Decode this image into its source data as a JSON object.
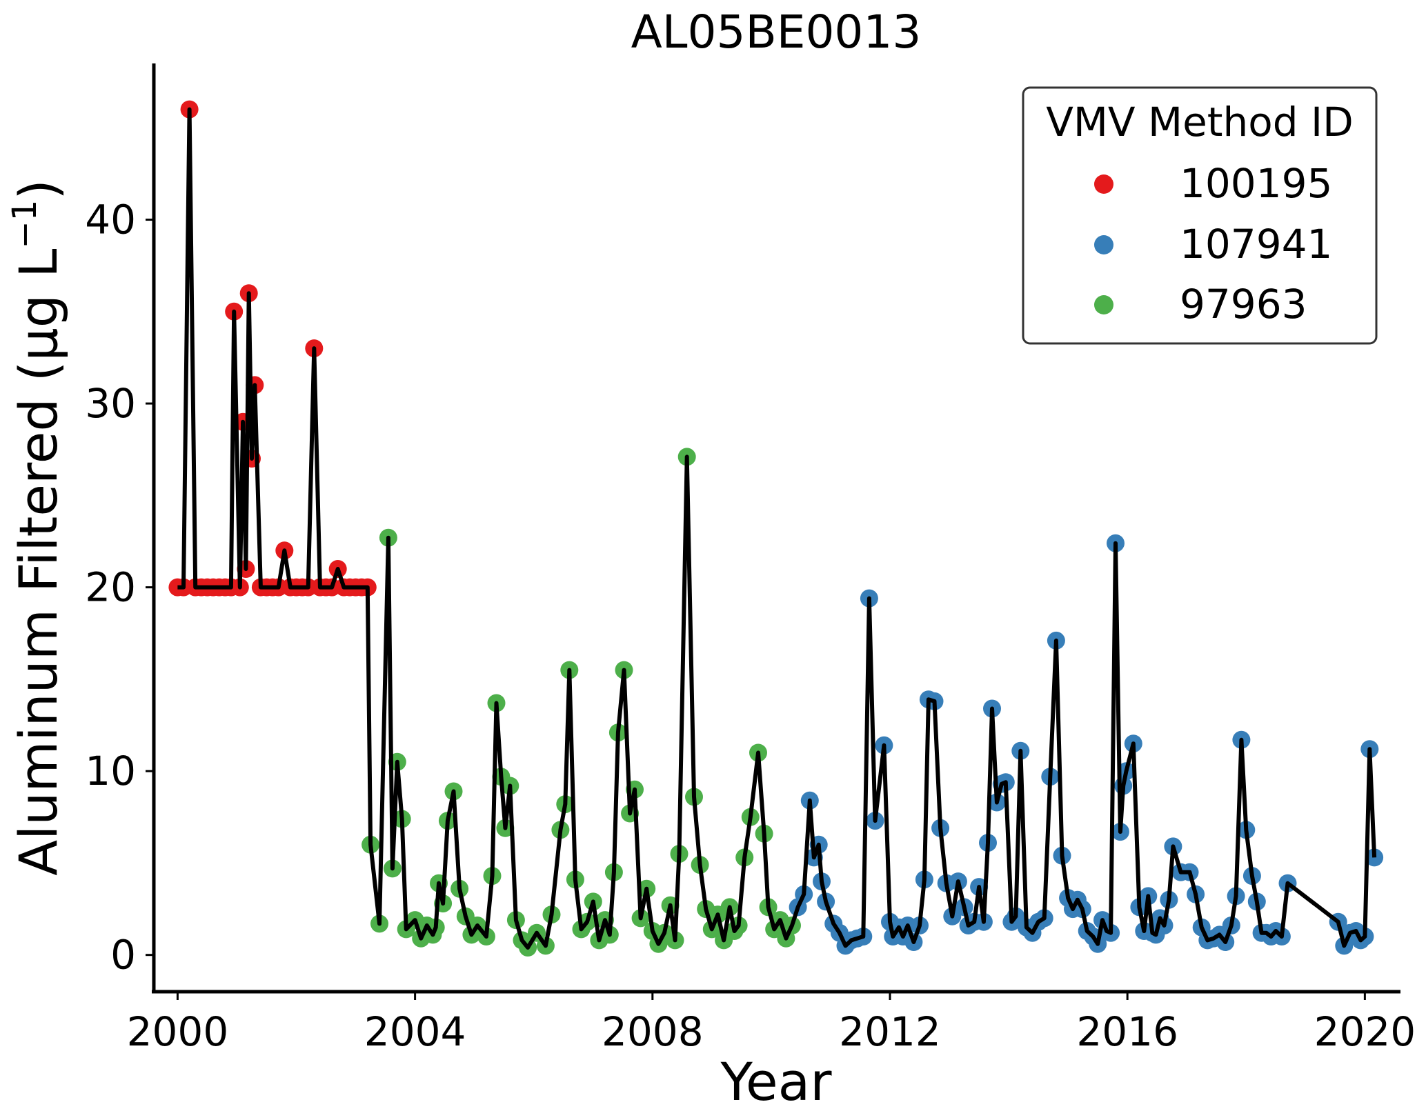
{
  "chart_data": {
    "type": "scatter",
    "title": "AL05BE0013",
    "xlabel": "Year",
    "ylabel_main": "Aluminum Filtered (µg L",
    "ylabel_sup": "−1",
    "ylabel_close": ")",
    "xlim": [
      1999.6,
      2020.6
    ],
    "ylim": [
      -2,
      48.5
    ],
    "xticks": [
      2000,
      2004,
      2008,
      2012,
      2016,
      2020
    ],
    "xtick_labels": [
      "2000",
      "2004",
      "2008",
      "2012",
      "2016",
      "2020"
    ],
    "yticks": [
      0,
      10,
      20,
      30,
      40
    ],
    "ytick_labels": [
      "0",
      "10",
      "20",
      "30",
      "40"
    ],
    "grid": false,
    "legend": {
      "title": "VMV Method ID",
      "placement": "top-right",
      "entries": [
        {
          "label": "100195",
          "color": "#e41a1c"
        },
        {
          "label": "107941",
          "color": "#377eb8"
        },
        {
          "label": "97963",
          "color": "#4daf4a"
        }
      ]
    },
    "line_color": "#000000",
    "series": [
      {
        "name": "100195",
        "color": "#e41a1c",
        "points": [
          [
            2000.0,
            20
          ],
          [
            2000.1,
            20
          ],
          [
            2000.2,
            46
          ],
          [
            2000.3,
            20
          ],
          [
            2000.4,
            20
          ],
          [
            2000.5,
            20
          ],
          [
            2000.6,
            20
          ],
          [
            2000.7,
            20
          ],
          [
            2000.8,
            20
          ],
          [
            2000.9,
            20
          ],
          [
            2000.95,
            35
          ],
          [
            2001.05,
            20
          ],
          [
            2001.1,
            29
          ],
          [
            2001.15,
            21
          ],
          [
            2001.2,
            36
          ],
          [
            2001.25,
            27
          ],
          [
            2001.3,
            31
          ],
          [
            2001.4,
            20
          ],
          [
            2001.5,
            20
          ],
          [
            2001.6,
            20
          ],
          [
            2001.7,
            20
          ],
          [
            2001.8,
            22
          ],
          [
            2001.9,
            20
          ],
          [
            2002.0,
            20
          ],
          [
            2002.1,
            20
          ],
          [
            2002.2,
            20
          ],
          [
            2002.3,
            33
          ],
          [
            2002.4,
            20
          ],
          [
            2002.5,
            20
          ],
          [
            2002.6,
            20
          ],
          [
            2002.7,
            21
          ],
          [
            2002.8,
            20
          ],
          [
            2002.9,
            20
          ],
          [
            2003.0,
            20
          ],
          [
            2003.1,
            20
          ],
          [
            2003.2,
            20
          ]
        ]
      },
      {
        "name": "97963",
        "color": "#4daf4a",
        "points": [
          [
            2003.25,
            6
          ],
          [
            2003.4,
            1.7
          ],
          [
            2003.55,
            22.7
          ],
          [
            2003.62,
            4.7
          ],
          [
            2003.7,
            10.5
          ],
          [
            2003.78,
            7.4
          ],
          [
            2003.85,
            1.4
          ],
          [
            2004.0,
            1.9
          ],
          [
            2004.1,
            0.9
          ],
          [
            2004.2,
            1.6
          ],
          [
            2004.3,
            1.1
          ],
          [
            2004.35,
            1.5
          ],
          [
            2004.4,
            3.9
          ],
          [
            2004.47,
            2.8
          ],
          [
            2004.55,
            7.3
          ],
          [
            2004.65,
            8.9
          ],
          [
            2004.75,
            3.6
          ],
          [
            2004.85,
            2.1
          ],
          [
            2004.95,
            1.1
          ],
          [
            2005.05,
            1.6
          ],
          [
            2005.2,
            1.0
          ],
          [
            2005.3,
            4.3
          ],
          [
            2005.37,
            13.7
          ],
          [
            2005.45,
            9.7
          ],
          [
            2005.52,
            6.9
          ],
          [
            2005.6,
            9.2
          ],
          [
            2005.7,
            1.9
          ],
          [
            2005.8,
            0.8
          ],
          [
            2005.9,
            0.4
          ],
          [
            2006.05,
            1.2
          ],
          [
            2006.2,
            0.5
          ],
          [
            2006.3,
            2.2
          ],
          [
            2006.45,
            6.8
          ],
          [
            2006.53,
            8.2
          ],
          [
            2006.6,
            15.5
          ],
          [
            2006.7,
            4.1
          ],
          [
            2006.8,
            1.4
          ],
          [
            2006.9,
            1.8
          ],
          [
            2007.0,
            2.9
          ],
          [
            2007.1,
            0.8
          ],
          [
            2007.2,
            1.9
          ],
          [
            2007.28,
            1.1
          ],
          [
            2007.35,
            4.5
          ],
          [
            2007.42,
            12.1
          ],
          [
            2007.52,
            15.5
          ],
          [
            2007.62,
            7.7
          ],
          [
            2007.7,
            9.0
          ],
          [
            2007.8,
            2.0
          ],
          [
            2007.9,
            3.6
          ],
          [
            2008.0,
            1.3
          ],
          [
            2008.1,
            0.6
          ],
          [
            2008.2,
            1.2
          ],
          [
            2008.3,
            2.7
          ],
          [
            2008.38,
            0.8
          ],
          [
            2008.45,
            5.5
          ],
          [
            2008.58,
            27.1
          ],
          [
            2008.7,
            8.6
          ],
          [
            2008.8,
            4.9
          ],
          [
            2008.9,
            2.5
          ],
          [
            2009.0,
            1.4
          ],
          [
            2009.1,
            2.2
          ],
          [
            2009.2,
            0.8
          ],
          [
            2009.3,
            2.6
          ],
          [
            2009.38,
            1.3
          ],
          [
            2009.45,
            1.6
          ],
          [
            2009.55,
            5.3
          ],
          [
            2009.65,
            7.5
          ],
          [
            2009.78,
            11.0
          ],
          [
            2009.88,
            6.6
          ],
          [
            2009.95,
            2.6
          ],
          [
            2010.05,
            1.4
          ],
          [
            2010.15,
            1.9
          ],
          [
            2010.25,
            0.9
          ],
          [
            2010.35,
            1.6
          ]
        ]
      },
      {
        "name": "107941",
        "color": "#377eb8",
        "points": [
          [
            2010.45,
            2.6
          ],
          [
            2010.55,
            3.3
          ],
          [
            2010.65,
            8.4
          ],
          [
            2010.72,
            5.3
          ],
          [
            2010.8,
            6.0
          ],
          [
            2010.85,
            4.0
          ],
          [
            2010.92,
            2.9
          ],
          [
            2011.05,
            1.7
          ],
          [
            2011.15,
            1.2
          ],
          [
            2011.25,
            0.5
          ],
          [
            2011.35,
            0.8
          ],
          [
            2011.45,
            0.9
          ],
          [
            2011.55,
            1.0
          ],
          [
            2011.65,
            19.4
          ],
          [
            2011.75,
            7.3
          ],
          [
            2011.9,
            11.4
          ],
          [
            2012.0,
            1.8
          ],
          [
            2012.05,
            1.0
          ],
          [
            2012.15,
            1.5
          ],
          [
            2012.22,
            1.0
          ],
          [
            2012.3,
            1.6
          ],
          [
            2012.4,
            0.7
          ],
          [
            2012.5,
            1.6
          ],
          [
            2012.58,
            4.1
          ],
          [
            2012.65,
            13.9
          ],
          [
            2012.75,
            13.8
          ],
          [
            2012.85,
            6.9
          ],
          [
            2012.95,
            3.9
          ],
          [
            2013.05,
            2.1
          ],
          [
            2013.15,
            4.0
          ],
          [
            2013.25,
            2.6
          ],
          [
            2013.32,
            1.6
          ],
          [
            2013.42,
            1.8
          ],
          [
            2013.5,
            3.7
          ],
          [
            2013.58,
            1.8
          ],
          [
            2013.65,
            6.1
          ],
          [
            2013.72,
            13.4
          ],
          [
            2013.8,
            8.3
          ],
          [
            2013.88,
            9.3
          ],
          [
            2013.95,
            9.4
          ],
          [
            2014.05,
            1.8
          ],
          [
            2014.12,
            2.1
          ],
          [
            2014.2,
            11.1
          ],
          [
            2014.3,
            1.5
          ],
          [
            2014.4,
            1.2
          ],
          [
            2014.5,
            1.8
          ],
          [
            2014.6,
            2.0
          ],
          [
            2014.7,
            9.7
          ],
          [
            2014.8,
            17.1
          ],
          [
            2014.9,
            5.4
          ],
          [
            2015.0,
            3.1
          ],
          [
            2015.08,
            2.5
          ],
          [
            2015.16,
            3.0
          ],
          [
            2015.24,
            2.5
          ],
          [
            2015.32,
            1.3
          ],
          [
            2015.42,
            1.0
          ],
          [
            2015.5,
            0.6
          ],
          [
            2015.58,
            1.9
          ],
          [
            2015.65,
            1.3
          ],
          [
            2015.72,
            1.2
          ],
          [
            2015.8,
            22.4
          ],
          [
            2015.88,
            6.7
          ],
          [
            2015.93,
            9.2
          ],
          [
            2015.98,
            10.0
          ],
          [
            2016.1,
            11.5
          ],
          [
            2016.2,
            2.6
          ],
          [
            2016.28,
            1.3
          ],
          [
            2016.35,
            3.2
          ],
          [
            2016.42,
            1.2
          ],
          [
            2016.48,
            1.1
          ],
          [
            2016.55,
            2.0
          ],
          [
            2016.62,
            1.6
          ],
          [
            2016.7,
            3.0
          ],
          [
            2016.77,
            5.9
          ],
          [
            2016.9,
            4.5
          ],
          [
            2017.05,
            4.5
          ],
          [
            2017.15,
            3.3
          ],
          [
            2017.25,
            1.5
          ],
          [
            2017.35,
            0.8
          ],
          [
            2017.45,
            0.9
          ],
          [
            2017.55,
            1.1
          ],
          [
            2017.65,
            0.7
          ],
          [
            2017.75,
            1.6
          ],
          [
            2017.83,
            3.2
          ],
          [
            2017.92,
            11.7
          ],
          [
            2018.0,
            6.8
          ],
          [
            2018.1,
            4.3
          ],
          [
            2018.18,
            2.9
          ],
          [
            2018.26,
            1.2
          ],
          [
            2018.34,
            1.2
          ],
          [
            2018.42,
            1.0
          ],
          [
            2018.5,
            1.3
          ],
          [
            2018.6,
            1.0
          ],
          [
            2018.7,
            3.9
          ],
          [
            2019.55,
            1.8
          ],
          [
            2019.65,
            0.5
          ],
          [
            2019.75,
            1.2
          ],
          [
            2019.85,
            1.3
          ],
          [
            2019.93,
            0.8
          ],
          [
            2020.0,
            1.0
          ],
          [
            2020.08,
            11.2
          ],
          [
            2020.16,
            5.3
          ]
        ]
      }
    ]
  }
}
